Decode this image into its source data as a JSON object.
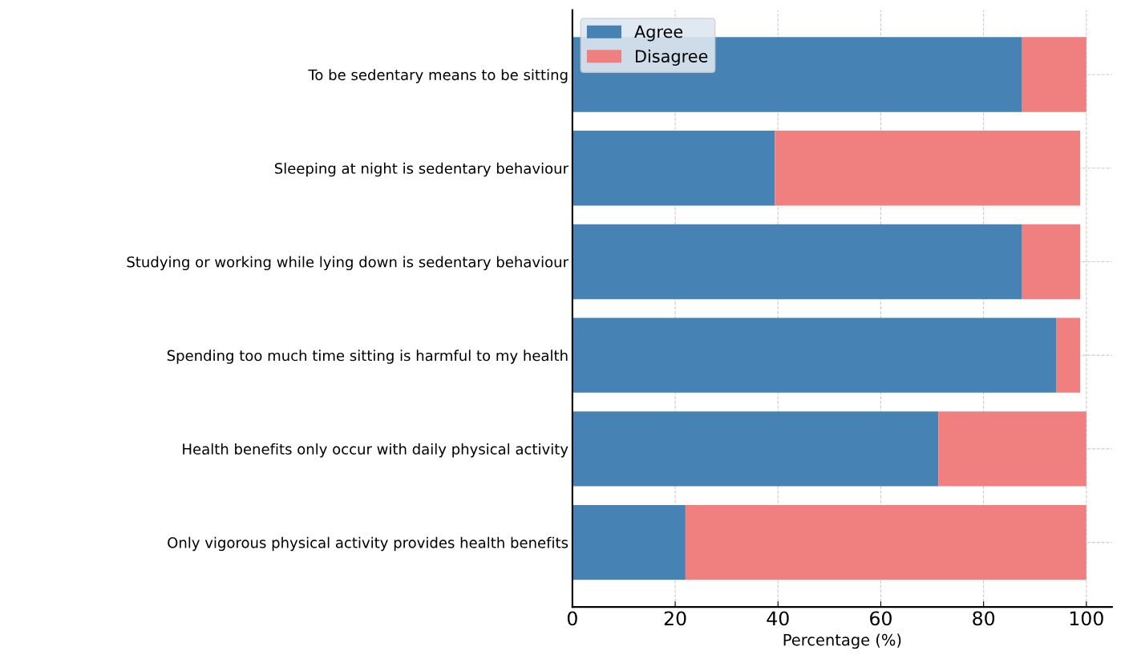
{
  "chart_data": {
    "type": "bar",
    "orientation": "horizontal",
    "stacked": true,
    "xlabel": "Percentage (%)",
    "categories": [
      "To be sedentary means to be sitting",
      "Sleeping at night is sedentary behaviour",
      "Studying or working while lying down is sedentary behaviour",
      "Spending too much time sitting is harmful to my health",
      "Health benefits only occur with daily physical activity",
      "Only vigorous physical activity provides health benefits"
    ],
    "series": [
      {
        "name": "Agree",
        "color": "#4682b4",
        "values": [
          87.5,
          39.4,
          87.5,
          94.2,
          71.2,
          22.0
        ]
      },
      {
        "name": "Disagree",
        "color": "#f08080",
        "values": [
          12.5,
          59.4,
          11.3,
          4.6,
          28.8,
          78.0
        ]
      }
    ],
    "xlim": [
      0,
      105
    ],
    "xticks": [
      0,
      20,
      40,
      60,
      80,
      100
    ],
    "grid": true,
    "legend": "top left"
  }
}
